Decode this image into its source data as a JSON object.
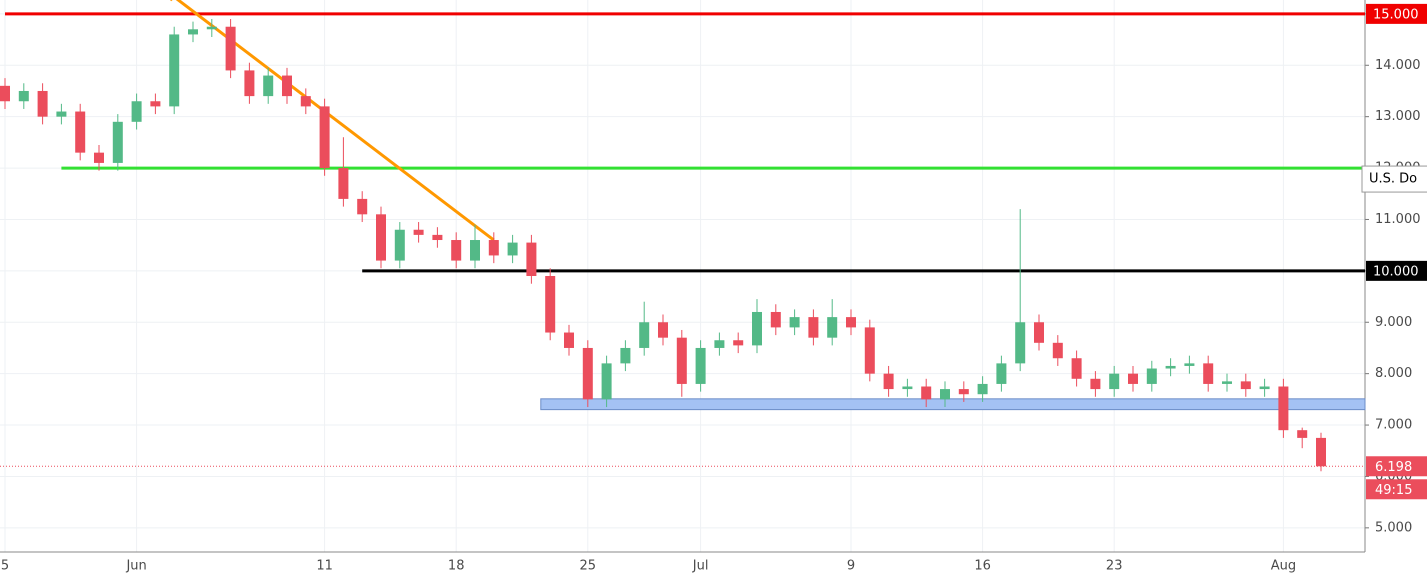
{
  "chart_data": {
    "type": "candlestick",
    "categories": [
      "5",
      null,
      null,
      null,
      null,
      null,
      null,
      "Jun",
      null,
      null,
      null,
      null,
      null,
      null,
      null,
      null,
      null,
      "11",
      null,
      null,
      null,
      null,
      null,
      null,
      "18",
      null,
      null,
      null,
      null,
      null,
      null,
      "25",
      null,
      null,
      null,
      null,
      null,
      "Jul",
      null,
      null,
      null,
      null,
      null,
      null,
      null,
      "9",
      null,
      null,
      null,
      null,
      null,
      null,
      "16",
      null,
      null,
      null,
      null,
      null,
      null,
      "23",
      null,
      null,
      null,
      null,
      null,
      null,
      null,
      null,
      "Aug",
      null,
      null
    ],
    "open": [
      13.6,
      13.3,
      13.5,
      13.0,
      13.1,
      12.3,
      12.1,
      12.9,
      13.3,
      13.2,
      14.6,
      14.7,
      14.75,
      13.9,
      13.4,
      13.8,
      13.4,
      13.2,
      12.0,
      11.4,
      11.1,
      10.2,
      10.8,
      10.7,
      10.6,
      10.2,
      10.6,
      10.3,
      10.55,
      9.9,
      8.8,
      8.5,
      7.5,
      8.2,
      8.5,
      9.0,
      8.7,
      7.8,
      8.5,
      8.65,
      8.55,
      9.2,
      8.9,
      9.1,
      8.7,
      9.1,
      8.9,
      8.0,
      7.7,
      7.75,
      7.5,
      7.7,
      7.6,
      7.8,
      8.2,
      9.0,
      8.6,
      8.3,
      7.9,
      7.7,
      8.0,
      7.8,
      8.1,
      8.15,
      8.2,
      7.8,
      7.85,
      7.7,
      7.75,
      6.9,
      6.75
    ],
    "high": [
      13.75,
      13.65,
      13.65,
      13.25,
      13.25,
      12.45,
      13.05,
      13.45,
      13.45,
      14.75,
      14.85,
      14.9,
      14.9,
      14.05,
      13.95,
      13.95,
      13.55,
      13.35,
      12.6,
      11.55,
      11.25,
      10.95,
      10.95,
      10.85,
      10.75,
      10.9,
      10.75,
      10.7,
      10.7,
      10.05,
      8.95,
      8.65,
      8.35,
      8.65,
      9.4,
      9.15,
      8.85,
      8.65,
      8.8,
      8.8,
      9.45,
      9.35,
      9.25,
      9.25,
      9.45,
      9.25,
      9.05,
      8.15,
      7.9,
      7.9,
      7.85,
      7.85,
      7.95,
      8.35,
      11.2,
      9.15,
      8.75,
      8.45,
      8.05,
      8.15,
      8.15,
      8.25,
      8.3,
      8.35,
      8.35,
      8.0,
      8.0,
      7.9,
      7.9,
      6.95,
      6.85
    ],
    "low": [
      13.15,
      13.15,
      12.85,
      12.85,
      12.15,
      11.95,
      11.95,
      12.75,
      13.05,
      13.05,
      14.45,
      14.55,
      13.75,
      13.25,
      13.25,
      13.25,
      13.05,
      11.85,
      11.25,
      10.95,
      10.05,
      10.05,
      10.55,
      10.45,
      10.05,
      10.05,
      10.15,
      10.15,
      9.75,
      8.65,
      8.35,
      7.35,
      7.35,
      8.05,
      8.35,
      8.55,
      7.55,
      7.65,
      8.35,
      8.4,
      8.4,
      8.75,
      8.75,
      8.55,
      8.55,
      8.75,
      7.85,
      7.55,
      7.55,
      7.35,
      7.35,
      7.45,
      7.45,
      7.65,
      8.05,
      8.45,
      8.15,
      7.75,
      7.55,
      7.55,
      7.65,
      7.65,
      7.95,
      8.0,
      7.65,
      7.65,
      7.55,
      7.55,
      6.75,
      6.55,
      6.1
    ],
    "close": [
      13.3,
      13.5,
      13.0,
      13.1,
      12.3,
      12.1,
      12.9,
      13.3,
      13.2,
      14.6,
      14.7,
      14.75,
      13.9,
      13.4,
      13.8,
      13.4,
      13.2,
      12.0,
      11.4,
      11.1,
      10.2,
      10.8,
      10.7,
      10.6,
      10.2,
      10.6,
      10.3,
      10.55,
      9.9,
      8.8,
      8.5,
      7.5,
      8.2,
      8.5,
      9.0,
      8.7,
      7.8,
      8.5,
      8.65,
      8.55,
      9.2,
      8.9,
      9.1,
      8.7,
      9.1,
      8.9,
      8.0,
      7.7,
      7.75,
      7.5,
      7.7,
      7.6,
      7.8,
      8.2,
      9.0,
      8.6,
      8.3,
      7.9,
      7.7,
      8.0,
      7.8,
      8.1,
      8.15,
      8.2,
      7.8,
      7.85,
      7.7,
      7.75,
      6.9,
      6.75,
      6.198
    ],
    "up_color": "#53b987",
    "down_color": "#eb4d5c",
    "ylim": [
      4.53,
      15.27
    ],
    "yticks": [
      {
        "value": 5,
        "label": "5.000"
      },
      {
        "value": 6,
        "label": "6.000"
      },
      {
        "value": 7,
        "label": "7.000"
      },
      {
        "value": 8,
        "label": "8.000"
      },
      {
        "value": 9,
        "label": "9.000"
      },
      {
        "value": 10,
        "label": "10.000"
      },
      {
        "value": 11,
        "label": "11.000"
      },
      {
        "value": 12,
        "label": "12.000"
      },
      {
        "value": 13,
        "label": "13.000"
      },
      {
        "value": 14,
        "label": "14.000"
      },
      {
        "value": 15,
        "label": "15.000"
      }
    ],
    "grid": true,
    "levels": [
      {
        "value": 15,
        "label": "15.000",
        "color": "#f00000",
        "from": 0
      },
      {
        "value": 12,
        "name": "U.S. Do",
        "color": "#33e033",
        "from": 3
      },
      {
        "value": 10,
        "label": "10.000",
        "color": "#000000",
        "from": 19
      }
    ],
    "trendline": {
      "x": [
        9,
        26
      ],
      "values": [
        15.33,
        10.6
      ],
      "color": "#ff9800"
    },
    "zone": {
      "from": 28.5,
      "low": 7.3,
      "high": 7.51,
      "color": "#a4c2f4"
    },
    "countdown": "49:15",
    "last_color": "#eb4d5c"
  }
}
